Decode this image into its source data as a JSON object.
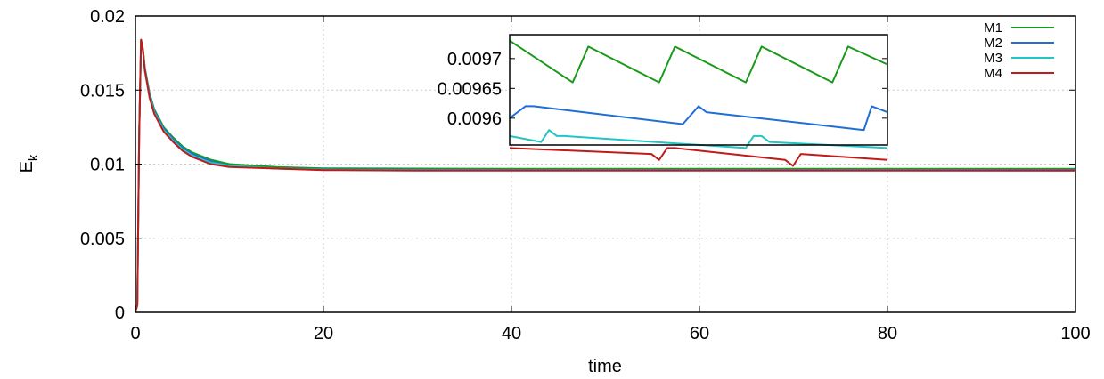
{
  "chart_data": {
    "type": "line",
    "xlabel": "time",
    "ylabel_main": "E",
    "ylabel_sub": "k",
    "xlim": [
      0,
      100
    ],
    "ylim": [
      0,
      0.02
    ],
    "xticks": [
      "0",
      "20",
      "40",
      "60",
      "80",
      "100"
    ],
    "yticks": [
      "0",
      "0.005",
      "0.01",
      "0.015",
      "0.02"
    ],
    "grid": true,
    "legend_position": "top-right",
    "series": [
      {
        "name": "M1",
        "color": "#1a9a1a",
        "settle": 0.00968,
        "x": [
          0,
          0.2,
          0.4,
          0.6,
          0.8,
          1.0,
          1.5,
          2,
          3,
          4,
          5,
          6,
          8,
          10,
          15,
          20,
          30,
          40,
          60,
          80,
          100
        ],
        "y": [
          0,
          0.0005,
          0.012,
          0.0184,
          0.0178,
          0.0165,
          0.0148,
          0.0137,
          0.0125,
          0.0118,
          0.0112,
          0.0108,
          0.0103,
          0.01,
          0.0098,
          0.00972,
          0.0097,
          0.00969,
          0.00969,
          0.00969,
          0.00968
        ]
      },
      {
        "name": "M2",
        "color": "#1f6fd6",
        "settle": 0.00961,
        "x": [
          0,
          0.2,
          0.4,
          0.6,
          0.8,
          1.0,
          1.5,
          2,
          3,
          4,
          5,
          6,
          8,
          10,
          15,
          20,
          30,
          40,
          60,
          80,
          100
        ],
        "y": [
          0,
          0.0005,
          0.012,
          0.0183,
          0.0177,
          0.0164,
          0.0147,
          0.0136,
          0.0124,
          0.0117,
          0.0111,
          0.0107,
          0.0102,
          0.0099,
          0.0097,
          0.00965,
          0.00962,
          0.00961,
          0.00961,
          0.00961,
          0.00961
        ]
      },
      {
        "name": "M3",
        "color": "#22c4c4",
        "settle": 0.00958,
        "x": [
          0,
          0.2,
          0.4,
          0.6,
          0.8,
          1.0,
          1.5,
          2,
          3,
          4,
          5,
          6,
          8,
          10,
          15,
          20,
          30,
          40,
          60,
          80,
          100
        ],
        "y": [
          0,
          0.0005,
          0.012,
          0.0183,
          0.0177,
          0.0163,
          0.0146,
          0.0135,
          0.0123,
          0.0116,
          0.011,
          0.0106,
          0.0101,
          0.0099,
          0.0097,
          0.00962,
          0.00959,
          0.00958,
          0.00958,
          0.00958,
          0.00957
        ]
      },
      {
        "name": "M4",
        "color": "#c01a1a",
        "settle": 0.00956,
        "x": [
          0,
          0.2,
          0.4,
          0.6,
          0.8,
          1.0,
          1.5,
          2,
          3,
          4,
          5,
          6,
          8,
          10,
          15,
          20,
          30,
          40,
          60,
          80,
          100
        ],
        "y": [
          0,
          0.0005,
          0.012,
          0.0184,
          0.0177,
          0.0163,
          0.0145,
          0.0134,
          0.0122,
          0.0115,
          0.0109,
          0.0105,
          0.01,
          0.0098,
          0.0097,
          0.0096,
          0.00957,
          0.00956,
          0.00956,
          0.00956,
          0.00956
        ]
      }
    ],
    "inset": {
      "ylim": [
        0.009555,
        0.00974
      ],
      "yticks": [
        "0.0097",
        "0.00965",
        "0.0096"
      ],
      "series": [
        {
          "name": "M1",
          "color": "#1a9a1a",
          "x": [
            0,
            8,
            10,
            19,
            21,
            30,
            32,
            41,
            43,
            48
          ],
          "y": [
            0.00973,
            0.00966,
            0.00972,
            0.00966,
            0.00972,
            0.00966,
            0.00972,
            0.00966,
            0.00972,
            0.00969
          ]
        },
        {
          "name": "M2",
          "color": "#1f6fd6",
          "x": [
            0,
            2,
            3,
            22,
            24,
            25,
            45,
            46,
            48
          ],
          "y": [
            0.0096,
            0.00962,
            0.00962,
            0.00959,
            0.00962,
            0.00961,
            0.00958,
            0.00962,
            0.00961
          ]
        },
        {
          "name": "M3",
          "color": "#22c4c4",
          "x": [
            0,
            4,
            5,
            6,
            7,
            30,
            31,
            32,
            33,
            48
          ],
          "y": [
            0.00957,
            0.00956,
            0.00958,
            0.00957,
            0.00957,
            0.00955,
            0.00957,
            0.00957,
            0.00956,
            0.00955
          ]
        },
        {
          "name": "M4",
          "color": "#c01a1a",
          "x": [
            0,
            18,
            19,
            20,
            21,
            35,
            36,
            37,
            48
          ],
          "y": [
            0.00955,
            0.00954,
            0.00953,
            0.00955,
            0.00955,
            0.00953,
            0.00952,
            0.00954,
            0.00953
          ]
        }
      ]
    }
  }
}
